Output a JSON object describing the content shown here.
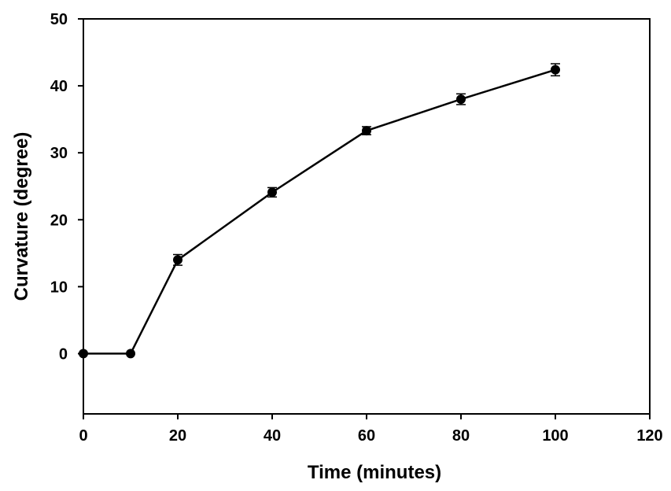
{
  "chart_data": {
    "type": "line",
    "title": "",
    "xlabel": "Time (minutes)",
    "ylabel": "Curvature (degree)",
    "xlim": [
      0,
      120
    ],
    "ylim": [
      -9,
      50
    ],
    "x_ticks": [
      0,
      20,
      40,
      60,
      80,
      100,
      120
    ],
    "y_ticks": [
      0,
      10,
      20,
      30,
      40,
      50
    ],
    "x_tick_labels": [
      "0",
      "20",
      "40",
      "60",
      "80",
      "100",
      "120"
    ],
    "y_tick_labels": [
      "0",
      "10",
      "20",
      "30",
      "40",
      "50"
    ],
    "grid": false,
    "legend": "none",
    "series": [
      {
        "x": [
          0,
          10,
          20,
          40,
          60,
          80,
          100
        ],
        "y": [
          0,
          0,
          14.0,
          24.1,
          33.3,
          38.0,
          42.4
        ],
        "error": [
          0,
          0,
          0.8,
          0.7,
          0.6,
          0.8,
          0.9
        ],
        "color": "#000000",
        "marker": "circle"
      }
    ]
  }
}
